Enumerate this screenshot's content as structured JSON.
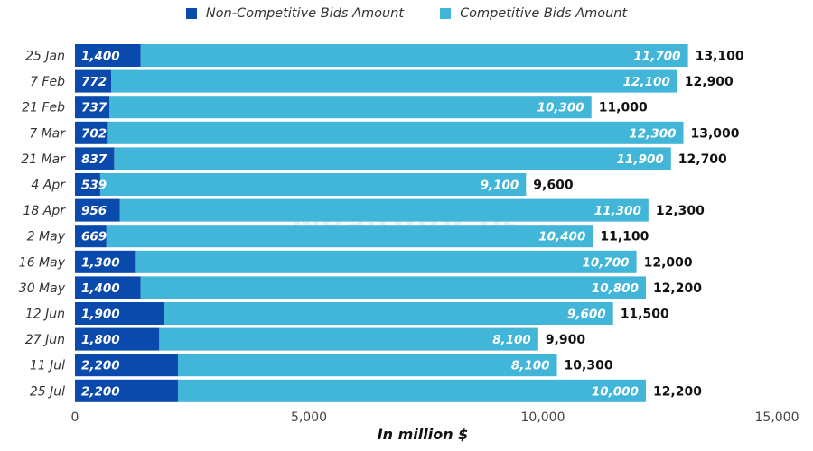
{
  "legend": {
    "non_competitive": "Non-Competitive Bids Amount",
    "competitive": "Competitive Bids Amount"
  },
  "watermark": "wealthfor us",
  "colors": {
    "non_competitive": "#0a4aad",
    "competitive": "#41b6d8",
    "inner_label": "#ffffff",
    "total_label": "#111111"
  },
  "chart_data": {
    "type": "bar",
    "orientation": "horizontal",
    "stacked": true,
    "categories": [
      "25 Jan",
      "7 Feb",
      "21 Feb",
      "7 Mar",
      "21 Mar",
      "4 Apr",
      "18 Apr",
      "2 May",
      "16 May",
      "30 May",
      "12 Jun",
      "27 Jun",
      "11 Jul",
      "25 Jul"
    ],
    "series": [
      {
        "name": "Non-Competitive Bids Amount",
        "values": [
          1400,
          772,
          737,
          702,
          837,
          539,
          956,
          669,
          1300,
          1400,
          1900,
          1800,
          2200,
          2200
        ],
        "labels": [
          "1,400",
          "772",
          "737",
          "702",
          "837",
          "539",
          "956",
          "669",
          "1,300",
          "1,400",
          "1,900",
          "1,800",
          "2,200",
          "2,200"
        ]
      },
      {
        "name": "Competitive Bids Amount",
        "values": [
          11700,
          12100,
          10300,
          12300,
          11900,
          9100,
          11300,
          10400,
          10700,
          10800,
          9600,
          8100,
          8100,
          10000
        ],
        "labels": [
          "11,700",
          "12,100",
          "10,300",
          "12,300",
          "11,900",
          "9,100",
          "11,300",
          "10,400",
          "10,700",
          "10,800",
          "9,600",
          "8,100",
          "8,100",
          "10,000"
        ]
      }
    ],
    "totals": [
      13100,
      12900,
      11000,
      13000,
      12700,
      9600,
      12300,
      11100,
      12000,
      12200,
      11500,
      9900,
      10300,
      12200
    ],
    "total_labels": [
      "13,100",
      "12,900",
      "11,000",
      "13,000",
      "12,700",
      "9,600",
      "12,300",
      "11,100",
      "12,000",
      "12,200",
      "11,500",
      "9,900",
      "10,300",
      "12,200"
    ],
    "xlabel": "In million $",
    "ylabel": "",
    "xlim": [
      0,
      15000
    ],
    "xticks": [
      0,
      5000,
      10000,
      15000
    ],
    "xtick_labels": [
      "0",
      "5,000",
      "10,000",
      "15,000"
    ],
    "grid": false,
    "legend_position": "top-center"
  }
}
